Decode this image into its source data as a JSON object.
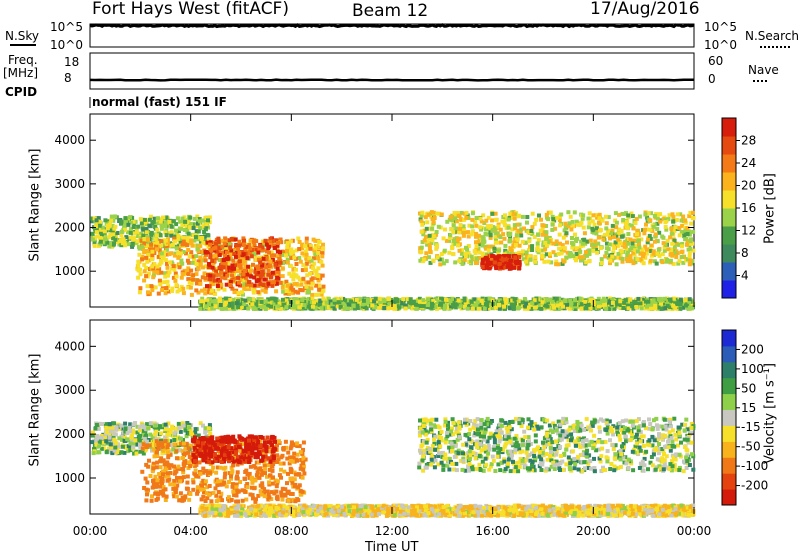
{
  "header": {
    "station": "Fort Hays West (fitACF)",
    "beam": "Beam 12",
    "date": "17/Aug/2016"
  },
  "rows": {
    "nsky_label": "N.Sky",
    "nsky_ticks": [
      "10^5",
      "10^0"
    ],
    "nsearch_label": "N.Search",
    "nsearch_ticks": [
      "10^5",
      "10^0"
    ],
    "freq_label": "Freq.",
    "freq_unit": "[MHz]",
    "freq_ticks": [
      "18",
      "8"
    ],
    "nave_label": "Nave",
    "nave_ticks": [
      "60",
      "0"
    ],
    "cpid_label": "CPID",
    "cpid_value": "normal (fast) 151 IF"
  },
  "axes": {
    "ylabel": "Slant Range [km]",
    "xlabel": "Time UT",
    "ytick_labels": [
      "1000",
      "2000",
      "3000",
      "4000"
    ],
    "xtick_labels": [
      "00:00",
      "04:00",
      "08:00",
      "12:00",
      "16:00",
      "20:00",
      "00:00"
    ]
  },
  "colorbars": {
    "power": {
      "label": "Power [dB]",
      "ticks": [
        "4",
        "8",
        "12",
        "16",
        "20",
        "24",
        "28"
      ],
      "colors": [
        "#1f22e6",
        "#2e5fb8",
        "#3f8a5c",
        "#4a9e48",
        "#9ad24a",
        "#f6e02a",
        "#fbb21c",
        "#f37a16",
        "#e54a10",
        "#d71e0c"
      ]
    },
    "velocity": {
      "label": "Velocity [m s⁻¹]",
      "ticks": [
        "200",
        "100",
        "50",
        "15",
        "-15",
        "-50",
        "-100",
        "-200"
      ],
      "colors": [
        "#1c2ad4",
        "#2a5cb8",
        "#2e7f6a",
        "#3f9e44",
        "#8fd04a",
        "#c8c8c0",
        "#f6e02a",
        "#f8b21c",
        "#f07816",
        "#e4420e",
        "#d41a0a"
      ]
    }
  },
  "chart_data": [
    {
      "type": "line",
      "title": "N.Sky / N.Search",
      "x_range_hours": [
        0,
        24
      ],
      "ylim_log10": [
        0,
        5
      ],
      "series": [
        {
          "name": "N.Sky",
          "approx_log10": 4.6
        },
        {
          "name": "N.Search",
          "approx_log10": 4.7
        }
      ]
    },
    {
      "type": "line",
      "title": "Freq. [MHz] / Nave",
      "x_range_hours": [
        0,
        24
      ],
      "ylim": [
        8,
        18
      ],
      "series": [
        {
          "name": "Freq.",
          "approx_value": 10.5
        }
      ]
    },
    {
      "type": "heatmap",
      "quantity": "Power [dB]",
      "x_range_hours": [
        0,
        24
      ],
      "ylim_km": [
        180,
        4600
      ],
      "clim_db": [
        0,
        32
      ],
      "features": [
        {
          "t": [
            0.0,
            4.7
          ],
          "range_km": [
            1600,
            2300
          ],
          "value_db": 14
        },
        {
          "t": [
            1.8,
            9.2
          ],
          "range_km": [
            500,
            1800
          ],
          "value_db": 20
        },
        {
          "t": [
            4.5,
            7.5
          ],
          "range_km": [
            700,
            1800
          ],
          "value_db": 27
        },
        {
          "t": [
            13.0,
            23.9
          ],
          "range_km": [
            1200,
            2400
          ],
          "value_db": 17
        },
        {
          "t": [
            15.5,
            17.0
          ],
          "range_km": [
            1100,
            1400
          ],
          "value_db": 30
        },
        {
          "t": [
            4.3,
            23.9
          ],
          "range_km": [
            180,
            420
          ],
          "value_db": 14
        }
      ]
    },
    {
      "type": "heatmap",
      "quantity": "Velocity [m s^-1]",
      "x_range_hours": [
        0,
        24
      ],
      "ylim_km": [
        180,
        4600
      ],
      "clim": [
        -250,
        250
      ],
      "features": [
        {
          "t": [
            0.0,
            4.7
          ],
          "range_km": [
            1600,
            2300
          ],
          "value": 0
        },
        {
          "t": [
            2.0,
            8.5
          ],
          "range_km": [
            500,
            1900
          ],
          "value": -90
        },
        {
          "t": [
            4.0,
            7.3
          ],
          "range_km": [
            1400,
            2000
          ],
          "value": -200
        },
        {
          "t": [
            13.0,
            23.9
          ],
          "range_km": [
            1200,
            2400
          ],
          "value": 0
        },
        {
          "t": [
            4.3,
            23.9
          ],
          "range_km": [
            180,
            420
          ],
          "value": -30
        }
      ]
    }
  ]
}
